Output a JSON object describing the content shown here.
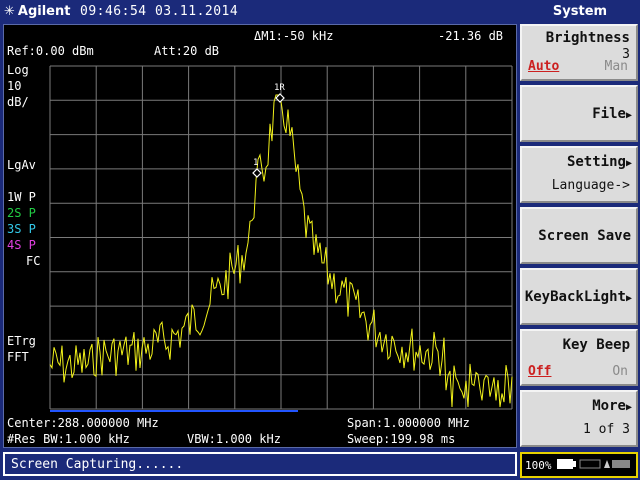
{
  "header": {
    "brand": "Agilent",
    "datetime": "09:46:54 03.11.2014",
    "menu_title": "System"
  },
  "display": {
    "delta_marker": "ΔM1:-50 kHz",
    "delta_value": "-21.36 dB",
    "ref_level": "Ref:0.00 dBm",
    "attenuation": "Att:20 dB",
    "scale_type": "Log",
    "scale_div": "10",
    "scale_unit": "dB/",
    "detector": "LgAv",
    "traces": [
      {
        "label": "1W P",
        "color": "#ffffff"
      },
      {
        "label": "2S P",
        "color": "#22cc44"
      },
      {
        "label": "3S P",
        "color": "#33c8e8"
      },
      {
        "label": "4S P",
        "color": "#e040e0"
      }
    ],
    "fc": "FC",
    "trigger": "ETrg",
    "mode": "FFT",
    "center": "Center:288.000000 MHz",
    "span": "Span:1.000000 MHz",
    "res_bw": "#Res BW:1.000 kHz",
    "vbw": "VBW:1.000 kHz",
    "sweep": "Sweep:199.98 ms",
    "marker_labels": [
      "1",
      "1R"
    ]
  },
  "softkeys": [
    {
      "label": "Brightness",
      "value": "3",
      "opt_on": "Auto",
      "opt_off": "Man"
    },
    {
      "label": "File"
    },
    {
      "label": "Setting",
      "sub": "Language->"
    },
    {
      "label": "Screen Save"
    },
    {
      "label": "KeyBackLight"
    },
    {
      "label": "Key Beep",
      "opt_on": "Off",
      "opt_off": "On"
    },
    {
      "label": "More",
      "sub": "1 of 3"
    }
  ],
  "status": {
    "message": "Screen Capturing......",
    "battery": "100%"
  },
  "colors": {
    "trace": "#f2f21a",
    "grid": "#8a8a8a",
    "header_bg": "#1b2a7a",
    "active_option": "#cc2020"
  }
}
